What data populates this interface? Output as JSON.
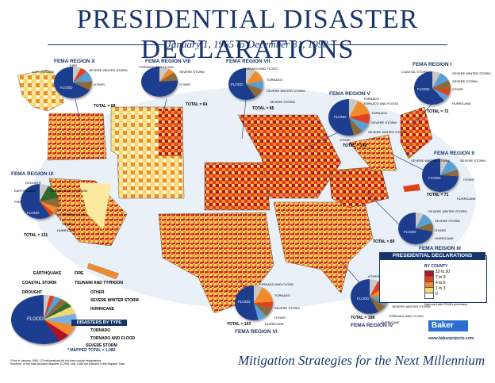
{
  "header": {
    "title": "PRESIDENTIAL DISASTER DECLARATIONS",
    "subtitle": "January 1, 1965 to December 31, 1998"
  },
  "footer": {
    "tagline": "Mitigation Strategies for the Next Millennium",
    "brand": "Baker",
    "url": "www.bakerprojects.com",
    "footnote_1": "* Prior to January 1965, 179 declarations did not have county designations.",
    "footnote_2": "Therefore, of the total declared disasters (1,259), only 1,080 are included in the Mapped Total."
  },
  "regions": {
    "r10": {
      "label": "FEMA REGION X",
      "total": "TOTAL = 68",
      "items": [
        "EARTHQUAKE",
        "FIRE",
        "SEVERE WINTER STORM",
        "FLOOD",
        "OTHER"
      ]
    },
    "r8": {
      "label": "FEMA REGION VIII",
      "total": "TOTAL = 64",
      "items": [
        "TORNADO AND FLOOD",
        "SEVERE STORM",
        "OTHER"
      ]
    },
    "r7": {
      "label": "FEMA REGION VII",
      "total": "TOTAL = 85",
      "items": [
        "TORNADO AND FLOOD",
        "TORNADO",
        "SEVERE WINTER STORM",
        "FLOOD",
        "SEVERE STORM"
      ]
    },
    "r5": {
      "label": "FEMA REGION V",
      "total": "TOTAL = 149",
      "items": [
        "TORNADO",
        "TORNADO AND FLOOD",
        "FLOOD",
        "TORNADO",
        "SEVERE STORM",
        "SEVERE WINTER STORM",
        "OTHER"
      ]
    },
    "r1": {
      "label": "FEMA REGION I",
      "total": "TOTAL = 72",
      "items": [
        "COASTAL STORM",
        "SEVERE WINTER STORM",
        "SEVERE STORM",
        "OTHER",
        "FLOOD",
        "HURRICANE"
      ]
    },
    "r2": {
      "label": "FEMA REGION II",
      "total": "TOTAL = 71",
      "items": [
        "SEVERE WINTER STORM",
        "SEVERE STORM",
        "FLOOD",
        "OTHER",
        "HURRICANE"
      ]
    },
    "r9": {
      "label": "FEMA REGION IX",
      "total": "TOTAL = 131",
      "items": [
        "DROUGHT",
        "EARTHQUAKE",
        "TSUNAMI AND TYPHOON",
        "FIRE",
        "FLOOD",
        "SEVERE STORM",
        "OTHER",
        "HURRICANE"
      ]
    },
    "r3": {
      "label": "FEMA REGION III",
      "total": "TOTAL = 89",
      "items": [
        "SEVERE WINTER STORM",
        "SEVERE STORM",
        "FLOOD",
        "OTHER",
        "HURRICANE"
      ]
    },
    "r6": {
      "label": "FEMA REGION VI",
      "total": "TOTAL = 163",
      "items": [
        "TORNADO AND FLOOD",
        "TORNADO",
        "FLOOD",
        "SEVERE STORM",
        "OTHER",
        "HURRICANE"
      ]
    },
    "r4": {
      "label": "FEMA REGION IV",
      "total": "TOTAL = 188",
      "items": [
        "OTHER",
        "SEVERE STORM",
        "TORNADO",
        "FLOOD",
        "SEVERE WINTER STORM",
        "TORNADO AND FLOOD",
        "HURRICANE"
      ]
    }
  },
  "national": {
    "title": "DISASTERS BY TYPE",
    "mapped_total": "* MAPPED TOTAL = 1,080",
    "center_label": "FLOOD",
    "items": [
      "EARTHQUAKE",
      "FIRE",
      "COASTAL STORM",
      "TSUNAMI AND TYPHOON",
      "DROUGHT",
      "OTHER",
      "SEVERE WINTER STORM",
      "HURRICANE",
      "TORNADO",
      "TORNADO AND FLOOD",
      "SEVERE STORM"
    ]
  },
  "legend": {
    "title": "PRESIDENTIAL DECLARATIONS",
    "subtitle": "BY COUNTY",
    "rows": [
      {
        "range": "10  to  20",
        "color": "#b0122a"
      },
      {
        "range": "7  to  9",
        "color": "#e2401c"
      },
      {
        "range": "4  to  6",
        "color": "#f08a2a"
      },
      {
        "range": "1  to  3",
        "color": "#f6d870"
      },
      {
        "range": "0",
        "color": "#ffffff"
      }
    ],
    "note": "Data used with FEMA's permission."
  },
  "colors": {
    "navy": "#17346b",
    "flood": "#1d3d8f",
    "dark_red": "#b0122a",
    "red": "#e2401c",
    "orange": "#f08a2a",
    "yellow": "#f6d870"
  }
}
